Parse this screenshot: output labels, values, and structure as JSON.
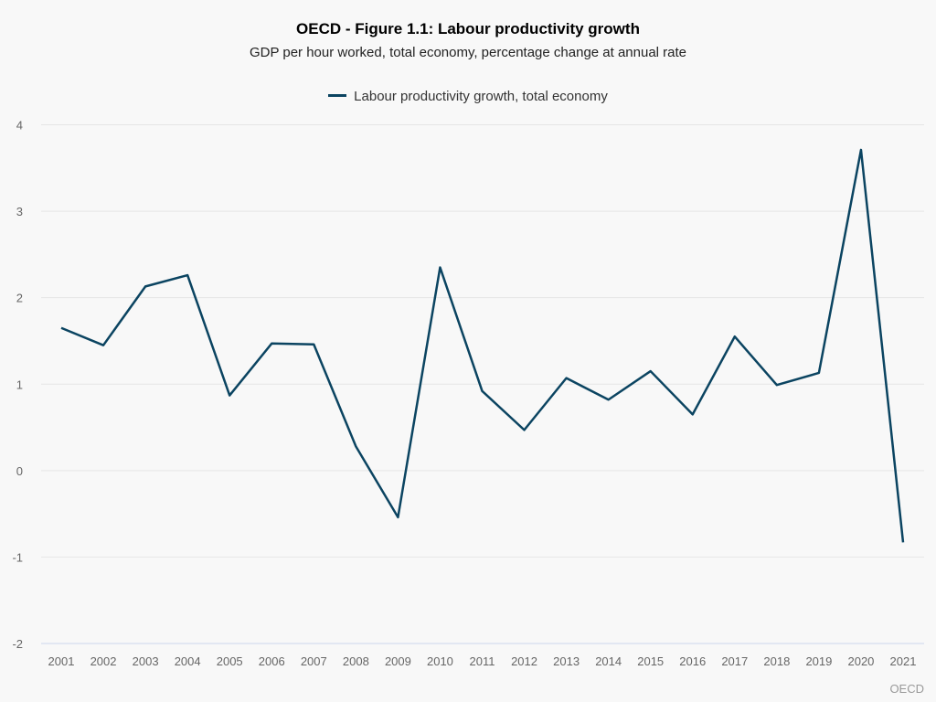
{
  "chart_data": {
    "type": "line",
    "title": "OECD - Figure 1.1: Labour productivity growth",
    "subtitle": "GDP per hour worked, total economy, percentage change at annual rate",
    "xlabel": "",
    "ylabel": "",
    "ylim": [
      -2,
      4
    ],
    "yticks": [
      -2,
      -1,
      0,
      1,
      2,
      3,
      4
    ],
    "grid": true,
    "legend_position": "top-center",
    "categories": [
      "2001",
      "2002",
      "2003",
      "2004",
      "2005",
      "2006",
      "2007",
      "2008",
      "2009",
      "2010",
      "2011",
      "2012",
      "2013",
      "2014",
      "2015",
      "2016",
      "2017",
      "2018",
      "2019",
      "2020",
      "2021"
    ],
    "series": [
      {
        "name": "Labour productivity growth, total economy",
        "color": "#0b4461",
        "values": [
          1.65,
          1.45,
          2.13,
          2.26,
          0.87,
          1.47,
          1.46,
          0.28,
          -0.54,
          2.35,
          0.92,
          0.47,
          1.07,
          0.82,
          1.15,
          0.65,
          1.55,
          0.99,
          1.13,
          3.71,
          -0.83
        ]
      }
    ],
    "credit": "OECD"
  }
}
